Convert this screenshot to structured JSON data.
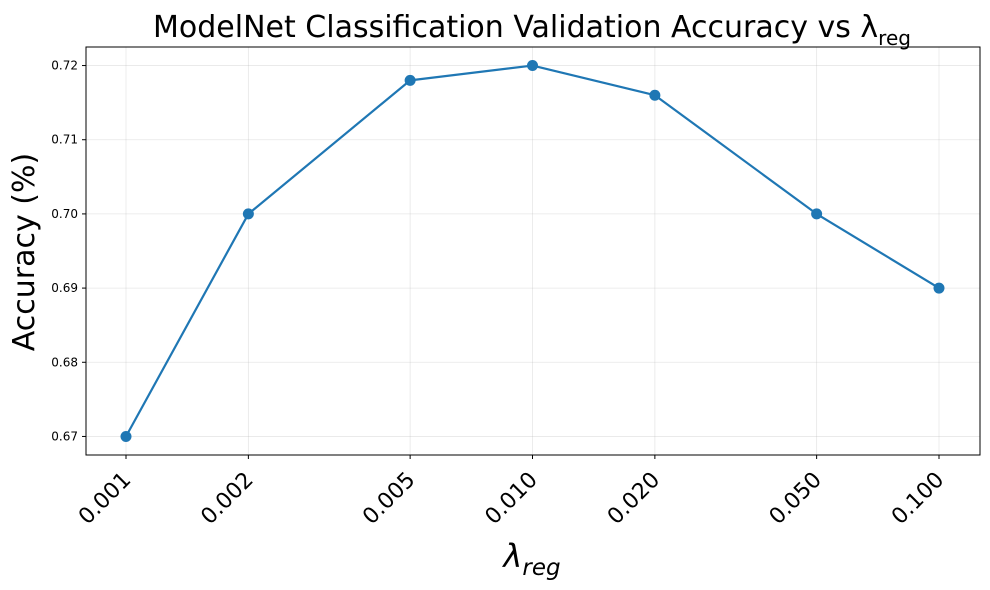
{
  "chart_data": {
    "type": "line",
    "title": "ModelNet Classification Validation Accuracy vs λ",
    "title_subscript": "reg",
    "xlabel": "λ",
    "xlabel_subscript": "reg",
    "ylabel": "Accuracy (%)",
    "x_scale": "log",
    "x": [
      0.001,
      0.002,
      0.005,
      0.01,
      0.02,
      0.05,
      0.1
    ],
    "x_tick_labels": [
      "0.001",
      "0.002",
      "0.005",
      "0.010",
      "0.020",
      "0.050",
      "0.100"
    ],
    "series": [
      {
        "values": [
          0.67,
          0.7,
          0.718,
          0.72,
          0.716,
          0.7,
          0.69
        ],
        "color": "#1f77b4"
      }
    ],
    "ylim": [
      0.6675,
      0.7225
    ],
    "y_ticks": [
      0.67,
      0.68,
      0.69,
      0.7,
      0.71,
      0.72
    ],
    "y_tick_labels": [
      "0.67",
      "0.68",
      "0.69",
      "0.70",
      "0.71",
      "0.72"
    ],
    "grid": true
  }
}
